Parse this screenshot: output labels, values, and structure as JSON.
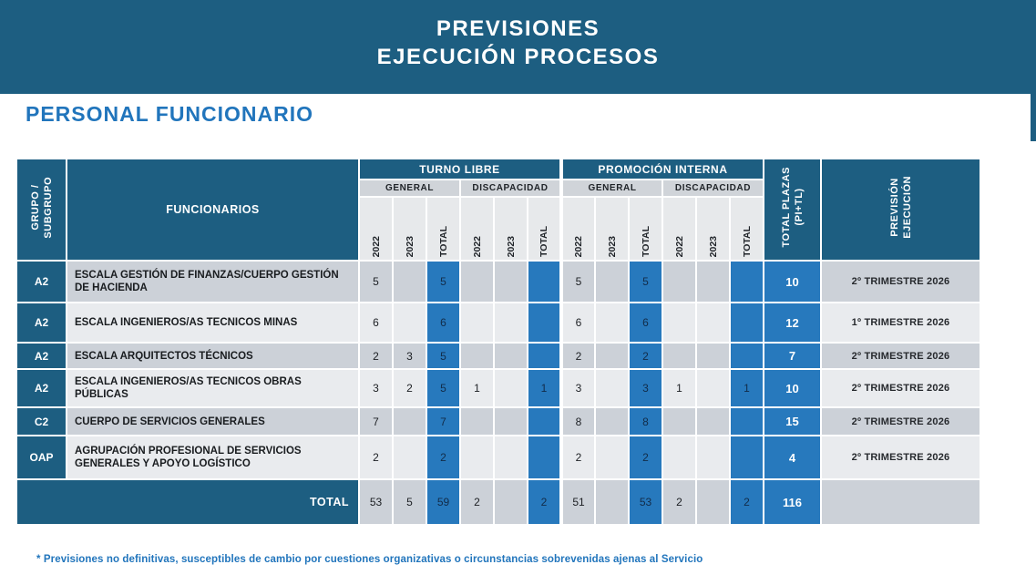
{
  "banner": {
    "title_line1": "PREVISIONES",
    "title_line2": "EJECUCIÓN PROCESOS"
  },
  "section_title": "PERSONAL FUNCIONARIO",
  "table": {
    "headers": {
      "grupo": "GRUPO /\nSUBGRUPO",
      "funcionarios": "FUNCIONARIOS",
      "turno_libre": "TURNO LIBRE",
      "promocion_interna": "PROMOCIÓN INTERNA",
      "sub_groups": [
        "GENERAL",
        "DISCAPACIDAD",
        "GENERAL",
        "DISCAPACIDAD"
      ],
      "year_columns": [
        "2022",
        "2023",
        "TOTAL",
        "2022",
        "2023",
        "TOTAL",
        "2022",
        "2023",
        "TOTAL",
        "2022",
        "2023",
        "TOTAL"
      ],
      "total_plazas": "TOTAL PLAZAS\n(PI+TL)",
      "prevision": "PREVISIÓN\nEJECUCIÓN"
    },
    "rows": [
      {
        "grupo": "A2",
        "name": "ESCALA GESTIÓN DE FINANZAS/CUERPO GESTIÓN DE HACIENDA",
        "values": [
          "5",
          "",
          "5",
          "",
          "",
          "",
          "5",
          "",
          "5",
          "",
          "",
          ""
        ],
        "total_plazas": "10",
        "prevision": "2º TRIMESTRE 2026"
      },
      {
        "grupo": "A2",
        "name": "ESCALA INGENIEROS/AS TECNICOS MINAS",
        "values": [
          "6",
          "",
          "6",
          "",
          "",
          "",
          "6",
          "",
          "6",
          "",
          "",
          ""
        ],
        "total_plazas": "12",
        "prevision": "1º TRIMESTRE 2026"
      },
      {
        "grupo": "A2",
        "name": "ESCALA ARQUITECTOS TÉCNICOS",
        "values": [
          "2",
          "3",
          "5",
          "",
          "",
          "",
          "2",
          "",
          "2",
          "",
          "",
          ""
        ],
        "total_plazas": "7",
        "prevision": "2º TRIMESTRE 2026"
      },
      {
        "grupo": "A2",
        "name": "ESCALA INGENIEROS/AS TECNICOS OBRAS PÚBLICAS",
        "values": [
          "3",
          "2",
          "5",
          "1",
          "",
          "1",
          "3",
          "",
          "3",
          "1",
          "",
          "1"
        ],
        "total_plazas": "10",
        "prevision": "2º TRIMESTRE 2026"
      },
      {
        "grupo": "C2",
        "name": "CUERPO DE SERVICIOS GENERALES",
        "values": [
          "7",
          "",
          "7",
          "",
          "",
          "",
          "8",
          "",
          "8",
          "",
          "",
          ""
        ],
        "total_plazas": "15",
        "prevision": "2º TRIMESTRE 2026"
      },
      {
        "grupo": "OAP",
        "name": "AGRUPACIÓN PROFESIONAL DE SERVICIOS GENERALES Y APOYO LOGÍSTICO",
        "values": [
          "2",
          "",
          "2",
          "",
          "",
          "",
          "2",
          "",
          "2",
          "",
          "",
          ""
        ],
        "total_plazas": "4",
        "prevision": "2º TRIMESTRE 2026"
      }
    ],
    "total_row": {
      "label": "TOTAL",
      "values": [
        "53",
        "5",
        "59",
        "2",
        "",
        "2",
        "51",
        "",
        "53",
        "2",
        "",
        "2"
      ],
      "total_plazas": "116",
      "prevision": ""
    }
  },
  "footnote": "* Previsiones no definitivas, susceptibles de cambio por cuestiones organizativas o circunstancias sobrevenidas ajenas al Servicio",
  "colors": {
    "teal_header": "#1d5e81",
    "accent_blue": "#2779bd",
    "row_gray": "#ccd1d8",
    "row_light": "#e9ebee",
    "title_blue": "#2175bc"
  }
}
